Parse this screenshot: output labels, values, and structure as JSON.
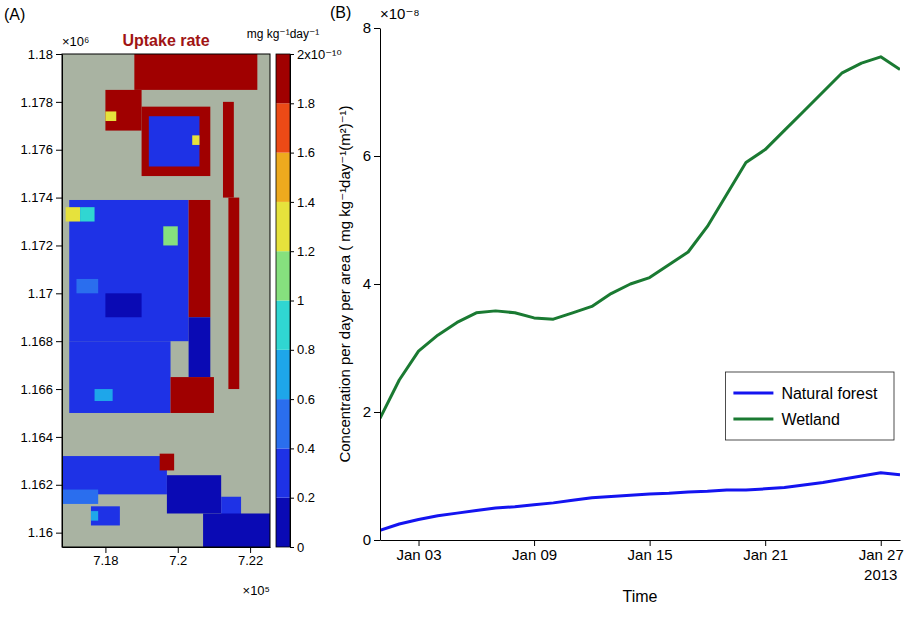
{
  "chart_data": [
    {
      "type": "heatmap",
      "panel_label": "(A)",
      "title": "Uptake rate",
      "x_exponent_label": "×10⁵",
      "y_exponent_label": "×10⁶",
      "xlim": [
        7.168,
        7.2255
      ],
      "xticks": [
        7.18,
        7.2,
        7.22
      ],
      "ylim": [
        1.1594,
        1.18
      ],
      "yticks": [
        1.16,
        1.162,
        1.164,
        1.166,
        1.168,
        1.17,
        1.172,
        1.174,
        1.176,
        1.178,
        1.18
      ],
      "grid": false,
      "cells": [
        {
          "x": [
            7.188,
            7.222
          ],
          "y": [
            1.1785,
            1.18
          ],
          "value": 1.9
        },
        {
          "x": [
            7.18,
            7.19
          ],
          "y": [
            1.1768,
            1.1785
          ],
          "value": 1.9
        },
        {
          "x": [
            7.18,
            7.183
          ],
          "y": [
            1.1772,
            1.1776
          ],
          "value": 1.3
        },
        {
          "x": [
            7.19,
            7.209
          ],
          "y": [
            1.1749,
            1.1778
          ],
          "value": 1.9
        },
        {
          "x": [
            7.192,
            7.206
          ],
          "y": [
            1.1753,
            1.1774
          ],
          "value": 0.3
        },
        {
          "x": [
            7.204,
            7.206
          ],
          "y": [
            1.1762,
            1.1766
          ],
          "value": 1.3
        },
        {
          "x": [
            7.2125,
            7.2155
          ],
          "y": [
            1.174,
            1.178
          ],
          "value": 1.9
        },
        {
          "x": [
            7.17,
            7.203
          ],
          "y": [
            1.168,
            1.1739
          ],
          "value": 0.3
        },
        {
          "x": [
            7.17,
            7.198
          ],
          "y": [
            1.165,
            1.168
          ],
          "value": 0.3
        },
        {
          "x": [
            7.203,
            7.209
          ],
          "y": [
            1.169,
            1.1739
          ],
          "value": 1.9
        },
        {
          "x": [
            7.203,
            7.209
          ],
          "y": [
            1.1665,
            1.169
          ],
          "value": 0.1
        },
        {
          "x": [
            7.198,
            7.21
          ],
          "y": [
            1.165,
            1.1665
          ],
          "value": 1.9
        },
        {
          "x": [
            7.214,
            7.217
          ],
          "y": [
            1.166,
            1.174
          ],
          "value": 1.9
        },
        {
          "x": [
            7.169,
            7.173
          ],
          "y": [
            1.173,
            1.1736
          ],
          "value": 1.3
        },
        {
          "x": [
            7.173,
            7.177
          ],
          "y": [
            1.173,
            1.1736
          ],
          "value": 0.9
        },
        {
          "x": [
            7.196,
            7.2
          ],
          "y": [
            1.172,
            1.1728
          ],
          "value": 1.1
        },
        {
          "x": [
            7.172,
            7.178
          ],
          "y": [
            1.17,
            1.1706
          ],
          "value": 0.5
        },
        {
          "x": [
            7.18,
            7.19
          ],
          "y": [
            1.169,
            1.17
          ],
          "value": 0.1
        },
        {
          "x": [
            7.177,
            7.182
          ],
          "y": [
            1.1655,
            1.166
          ],
          "value": 0.7
        },
        {
          "x": [
            7.168,
            7.197
          ],
          "y": [
            1.1616,
            1.1632
          ],
          "value": 0.3
        },
        {
          "x": [
            7.195,
            7.199
          ],
          "y": [
            1.1626,
            1.1633
          ],
          "value": 1.9
        },
        {
          "x": [
            7.168,
            7.178
          ],
          "y": [
            1.1612,
            1.1618
          ],
          "value": 0.5
        },
        {
          "x": [
            7.176,
            7.184
          ],
          "y": [
            1.1603,
            1.1611
          ],
          "value": 0.3
        },
        {
          "x": [
            7.176,
            7.178
          ],
          "y": [
            1.1605,
            1.1609
          ],
          "value": 0.7
        },
        {
          "x": [
            7.197,
            7.212
          ],
          "y": [
            1.1608,
            1.1624
          ],
          "value": 0.1
        },
        {
          "x": [
            7.212,
            7.2175
          ],
          "y": [
            1.1605,
            1.1615
          ],
          "value": 0.3
        },
        {
          "x": [
            7.207,
            7.2255
          ],
          "y": [
            1.1594,
            1.1608
          ],
          "value": 0.1
        }
      ],
      "colorbar": {
        "label": "mg kg⁻¹day⁻¹",
        "range": [
          0,
          2
        ],
        "ticks": [
          0,
          0.2,
          0.4,
          0.6,
          0.8,
          1,
          1.2,
          1.4,
          1.6,
          1.8,
          {
            "value": 2,
            "label": "2x10⁻¹⁰"
          }
        ],
        "colors": [
          "#0a0ab4",
          "#1e32e6",
          "#2a6eee",
          "#1ea6ea",
          "#30d6d2",
          "#86e07e",
          "#e6e23c",
          "#eeaa1e",
          "#ec4a16",
          "#a00000"
        ]
      }
    },
    {
      "type": "line",
      "panel_label": "(B)",
      "y_exponent_label": "×10⁻⁸",
      "x_label": "Time",
      "y_label": "Concentration per day per area ( mg kg⁻¹day⁻¹(m²)⁻¹)",
      "x_secondary_label": "2013",
      "x": [
        "2013-01-01",
        "2013-01-02",
        "2013-01-03",
        "2013-01-04",
        "2013-01-05",
        "2013-01-06",
        "2013-01-07",
        "2013-01-08",
        "2013-01-09",
        "2013-01-10",
        "2013-01-11",
        "2013-01-12",
        "2013-01-13",
        "2013-01-14",
        "2013-01-15",
        "2013-01-16",
        "2013-01-17",
        "2013-01-18",
        "2013-01-19",
        "2013-01-20",
        "2013-01-21",
        "2013-01-22",
        "2013-01-23",
        "2013-01-24",
        "2013-01-25",
        "2013-01-26",
        "2013-01-27",
        "2013-01-28"
      ],
      "xlim": [
        "2013-01-01",
        "2013-01-28"
      ],
      "xticks": [
        {
          "value": "2013-01-03",
          "label": "Jan 03"
        },
        {
          "value": "2013-01-09",
          "label": "Jan 09"
        },
        {
          "value": "2013-01-15",
          "label": "Jan 15"
        },
        {
          "value": "2013-01-21",
          "label": "Jan 21"
        },
        {
          "value": "2013-01-27",
          "label": "Jan 27"
        }
      ],
      "ylim": [
        0,
        8
      ],
      "yticks": [
        0,
        2,
        4,
        6,
        8
      ],
      "grid": false,
      "legend": "lower right",
      "series": [
        {
          "name": "Natural forest",
          "color": "#1414f0",
          "values": [
            0.15,
            0.25,
            0.32,
            0.38,
            0.42,
            0.46,
            0.5,
            0.52,
            0.55,
            0.58,
            0.62,
            0.66,
            0.68,
            0.7,
            0.72,
            0.73,
            0.75,
            0.76,
            0.78,
            0.78,
            0.8,
            0.82,
            0.86,
            0.9,
            0.95,
            1.0,
            1.05,
            1.02
          ]
        },
        {
          "name": "Wetland",
          "color": "#1a7a32",
          "values": [
            1.9,
            2.5,
            2.95,
            3.2,
            3.4,
            3.55,
            3.58,
            3.55,
            3.47,
            3.45,
            3.55,
            3.65,
            3.85,
            4.0,
            4.1,
            4.3,
            4.5,
            4.9,
            5.4,
            5.9,
            6.1,
            6.4,
            6.7,
            7.0,
            7.3,
            7.45,
            7.55,
            7.35
          ]
        }
      ]
    }
  ]
}
